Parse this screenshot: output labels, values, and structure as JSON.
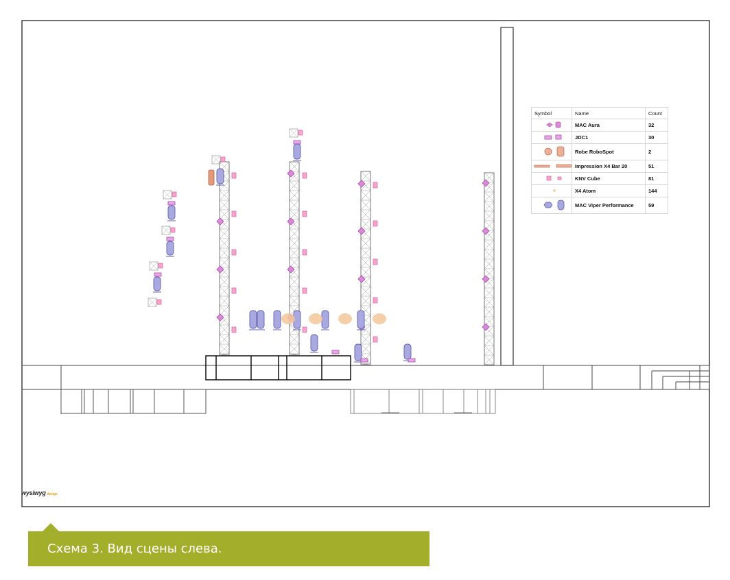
{
  "legend": {
    "headers": {
      "symbol": "Symbol",
      "name": "Name",
      "count": "Count"
    },
    "rows": [
      {
        "icon": "mac-aura-icon",
        "name": "MAC Aura",
        "count": "32"
      },
      {
        "icon": "jdc1-icon",
        "name": "JDC1",
        "count": "30"
      },
      {
        "icon": "robe-robospot-icon",
        "name": "Robe RoboSpot",
        "count": "2"
      },
      {
        "icon": "impression-x4-bar-icon",
        "name": "Impression X4 Bar 20",
        "count": "51"
      },
      {
        "icon": "knv-cube-icon",
        "name": "KNV Cube",
        "count": "81"
      },
      {
        "icon": "x4-atom-icon",
        "name": "X4 Atom",
        "count": "144"
      },
      {
        "icon": "mac-viper-performance-icon",
        "name": "MAC Viper Performance",
        "count": "59"
      }
    ]
  },
  "logo": {
    "main": "wysiwyg",
    "sub": "design"
  },
  "caption": "Схема 3. Вид сцены слева.",
  "colors": {
    "outline": "#222222",
    "aura": "#c861c8",
    "viper": "#8f8fd2",
    "knv": "#f07ab8",
    "x4bar": "#f3c79a",
    "robospot": "#e39a7c",
    "caption_bg": "#a3ae2b"
  }
}
